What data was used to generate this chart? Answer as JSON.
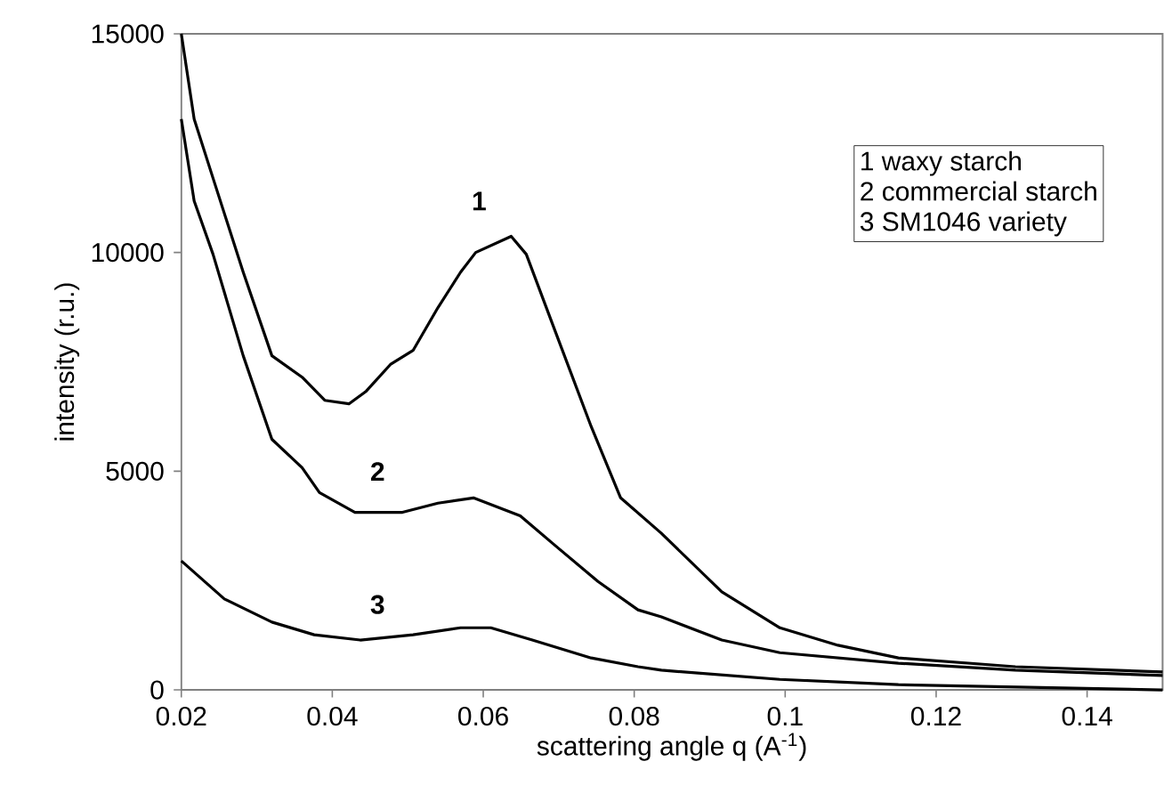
{
  "chart_data": {
    "type": "line",
    "xlabel": "scattering angle q (A$^{-1}$)",
    "ylabel": "intensity (r.u.)",
    "xlim": [
      0.02,
      0.15
    ],
    "xticks": [
      0.02,
      0.04,
      0.06,
      0.08,
      0.1,
      0.12,
      0.14
    ],
    "ylim": [
      0,
      15000
    ],
    "yticks": [
      0,
      5000,
      10000,
      15000
    ],
    "grid": false,
    "marker": "none",
    "line_style": "solid",
    "series": [
      {
        "color": "#000000",
        "x": [
          0.02,
          0.0217,
          0.0242,
          0.0282,
          0.032,
          0.036,
          0.039,
          0.0422,
          0.0445,
          0.0477,
          0.0507,
          0.054,
          0.057,
          0.059,
          0.0637,
          0.0657,
          0.0696,
          0.0743,
          0.0782,
          0.0836,
          0.0916,
          0.0993,
          0.107,
          0.115,
          0.1305,
          0.15
        ],
        "values": [
          15000,
          13050,
          11700,
          9550,
          7640,
          7150,
          6620,
          6540,
          6830,
          7440,
          7760,
          8740,
          9550,
          10000,
          10370,
          9960,
          8170,
          6020,
          4390,
          3580,
          2240,
          1420,
          1020,
          730,
          530,
          410
        ]
      },
      {
        "color": "#000000",
        "x": [
          0.02,
          0.0217,
          0.0242,
          0.0282,
          0.032,
          0.036,
          0.0383,
          0.043,
          0.0493,
          0.054,
          0.0587,
          0.0649,
          0.0696,
          0.0752,
          0.0805,
          0.0836,
          0.0916,
          0.0993,
          0.115,
          0.1305,
          0.15
        ],
        "values": [
          13050,
          11180,
          9960,
          7640,
          5730,
          5080,
          4510,
          4060,
          4060,
          4270,
          4390,
          3980,
          3290,
          2480,
          1830,
          1670,
          1140,
          850,
          610,
          450,
          330
        ]
      },
      {
        "color": "#000000",
        "x": [
          0.02,
          0.0257,
          0.032,
          0.0376,
          0.0437,
          0.0507,
          0.057,
          0.061,
          0.0665,
          0.0743,
          0.0805,
          0.0836,
          0.0993,
          0.115,
          0.15
        ],
        "values": [
          2950,
          2080,
          1550,
          1260,
          1140,
          1260,
          1420,
          1420,
          1140,
          730,
          530,
          450,
          240,
          120,
          0
        ]
      }
    ],
    "annotations": [
      "1",
      "2",
      "3",
      "1   waxy starch",
      "2   commercial starch",
      "3   SM1046 variety"
    ]
  }
}
